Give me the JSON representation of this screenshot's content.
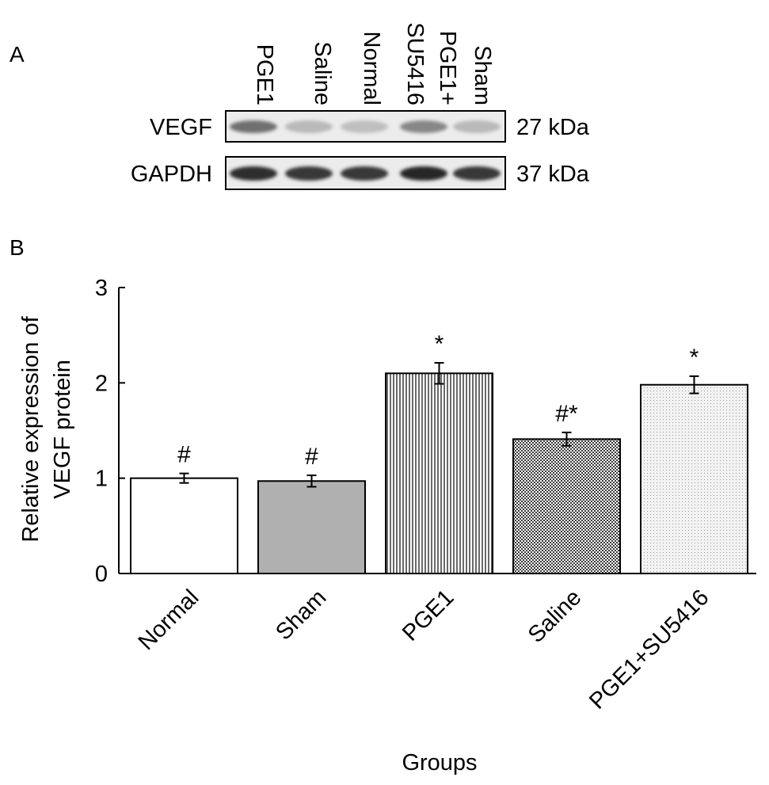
{
  "panel_a": {
    "label": "A",
    "lanes": [
      "PGE1",
      "Saline",
      "Normal",
      "SU5416",
      "PGE1+",
      "Sham"
    ],
    "blots": [
      {
        "protein": "VEGF",
        "size": "27 kDa",
        "intensity": [
          0.62,
          0.25,
          0.22,
          0.5,
          0.25
        ]
      },
      {
        "protein": "GAPDH",
        "size": "37 kDa",
        "intensity": [
          0.95,
          0.9,
          0.9,
          0.98,
          0.9
        ]
      }
    ]
  },
  "panel_b": {
    "label": "B"
  },
  "chart_data": {
    "type": "bar",
    "categories": [
      "Normal",
      "Sham",
      "PGE1",
      "Saline",
      "PGE1+SU5416"
    ],
    "values": [
      1.0,
      0.97,
      2.1,
      1.41,
      1.98
    ],
    "errors": [
      0.05,
      0.06,
      0.11,
      0.07,
      0.09
    ],
    "annotations": [
      "#",
      "#",
      "*",
      "#*",
      "*"
    ],
    "fills": [
      "#ffffff",
      "#b0b0b0",
      "stripes-vertical",
      "dense-checker",
      "fine-dots"
    ],
    "xlabel": "Groups",
    "ylabel": [
      "Relative expression of",
      "VEGF protein"
    ],
    "ylim": [
      0,
      3
    ],
    "yticks": [
      "0",
      "1",
      "2",
      "3"
    ],
    "grid": false,
    "legend": "none"
  }
}
